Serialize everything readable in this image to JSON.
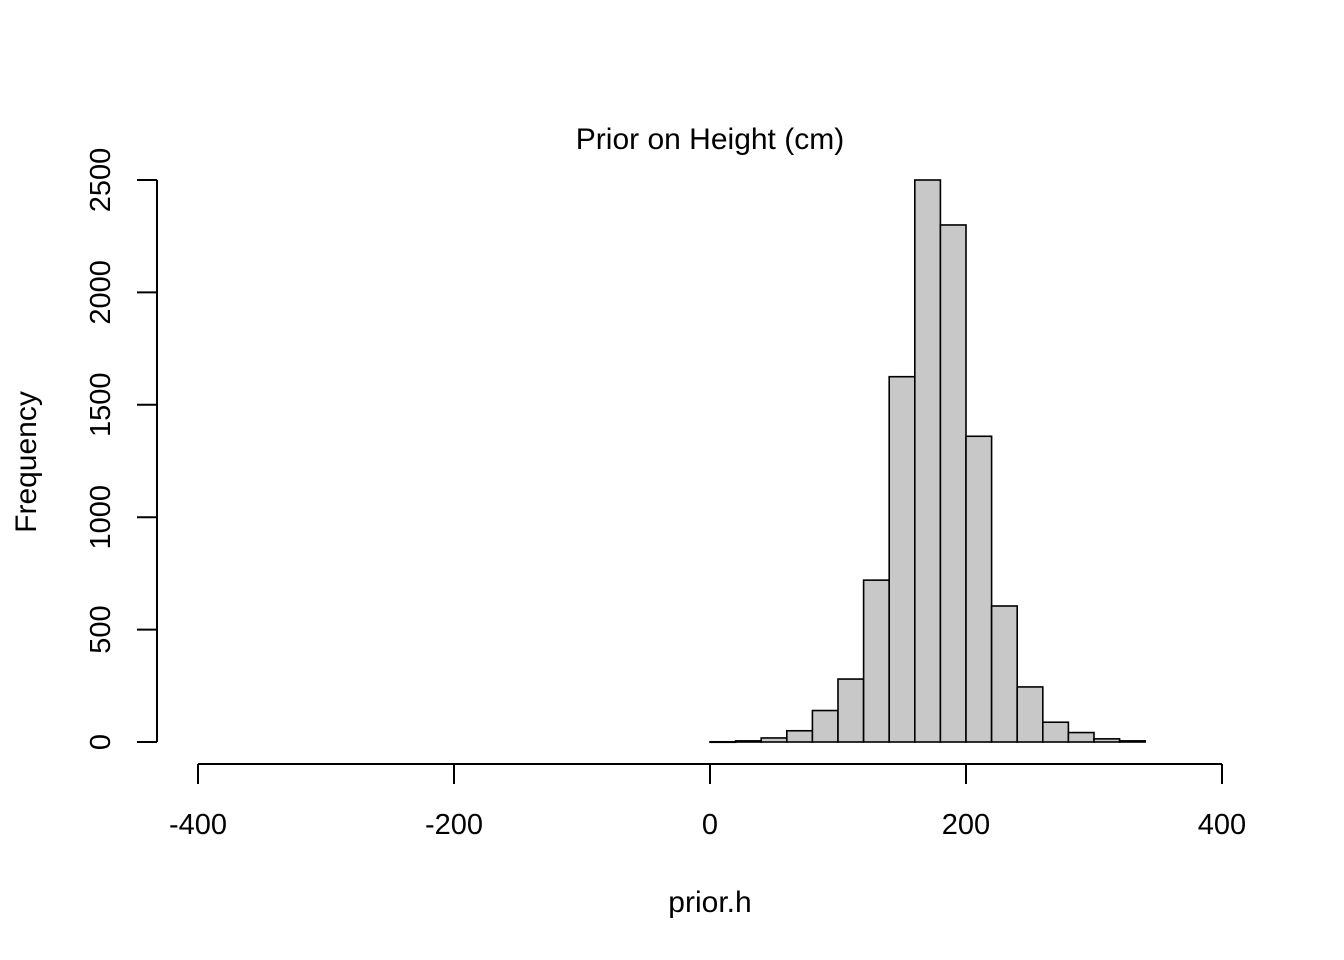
{
  "chart_data": {
    "type": "bar",
    "title": "Prior on Height (cm)",
    "xlabel": "prior.h",
    "ylabel": "Frequency",
    "xlim": [
      -400,
      400
    ],
    "ylim": [
      0,
      2500
    ],
    "x_ticks": [
      -400,
      -200,
      0,
      200,
      400
    ],
    "x_tick_labels": [
      "-400",
      "-200",
      "0",
      "200",
      "400"
    ],
    "y_ticks": [
      0,
      500,
      1000,
      1500,
      2000,
      2500
    ],
    "y_tick_labels": [
      "0",
      "500",
      "1000",
      "1500",
      "2000",
      "2500"
    ],
    "bin_width": 20,
    "bins": [
      {
        "start": 0,
        "end": 20,
        "count": 1
      },
      {
        "start": 20,
        "end": 40,
        "count": 5
      },
      {
        "start": 40,
        "end": 60,
        "count": 18
      },
      {
        "start": 60,
        "end": 80,
        "count": 50
      },
      {
        "start": 80,
        "end": 100,
        "count": 140
      },
      {
        "start": 100,
        "end": 120,
        "count": 280
      },
      {
        "start": 120,
        "end": 140,
        "count": 720
      },
      {
        "start": 140,
        "end": 160,
        "count": 1625
      },
      {
        "start": 160,
        "end": 180,
        "count": 2500
      },
      {
        "start": 180,
        "end": 200,
        "count": 2300
      },
      {
        "start": 200,
        "end": 220,
        "count": 1360
      },
      {
        "start": 220,
        "end": 240,
        "count": 605
      },
      {
        "start": 240,
        "end": 260,
        "count": 245
      },
      {
        "start": 260,
        "end": 280,
        "count": 88
      },
      {
        "start": 280,
        "end": 300,
        "count": 42
      },
      {
        "start": 300,
        "end": 320,
        "count": 14
      },
      {
        "start": 320,
        "end": 340,
        "count": 5
      }
    ],
    "grid": false,
    "bar_fill": "#c8c8c8",
    "bar_stroke": "#000000"
  }
}
